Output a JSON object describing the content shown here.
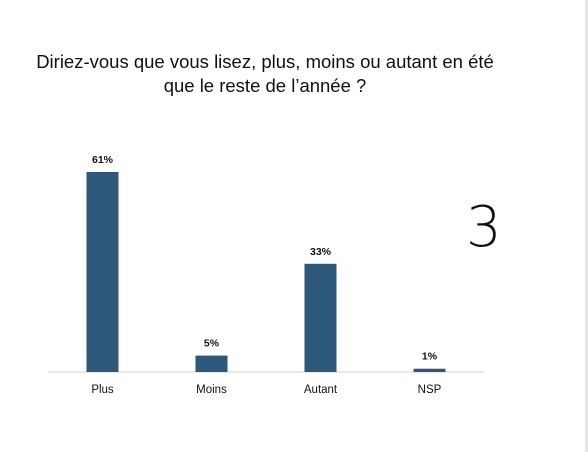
{
  "slide": {
    "title_line1": "Diriez-vous que vous lisez, plus, moins ou autant en été",
    "title_line2": "que le reste de l’année ?",
    "page_number": "3"
  },
  "chart_data": {
    "type": "bar",
    "title": "Diriez-vous que vous lisez, plus, moins ou autant en été que le reste de l’année ?",
    "xlabel": "",
    "ylabel": "",
    "categories": [
      "Plus",
      "Moins",
      "Autant",
      "NSP"
    ],
    "values": [
      61,
      5,
      33,
      1
    ],
    "value_labels": [
      "61%",
      "5%",
      "33%",
      "1%"
    ],
    "unit": "%",
    "ylim": [
      0,
      61
    ],
    "grid": false,
    "legend": "none",
    "bar_color": "#2e5879",
    "axis_color": "#d0d0d0"
  }
}
